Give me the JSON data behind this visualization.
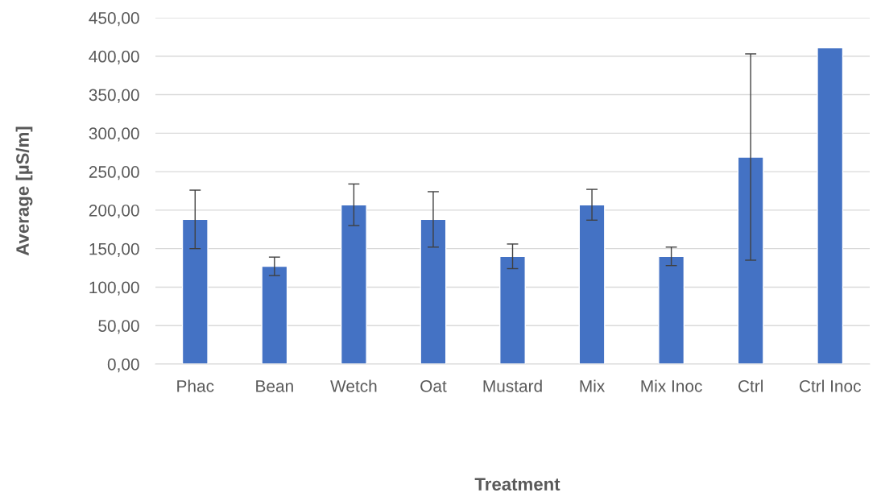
{
  "chart_data": {
    "type": "bar",
    "categories": [
      "Phac",
      "Bean",
      "Wetch",
      "Oat",
      "Mustard",
      "Mix",
      "Mix Inoc",
      "Ctrl",
      "Ctrl Inoc"
    ],
    "values": [
      188,
      127,
      207,
      188,
      140,
      207,
      140,
      269,
      411
    ],
    "errors": [
      38,
      12,
      27,
      36,
      16,
      20,
      12,
      134,
      null
    ],
    "color": "#4472c4",
    "xlabel": "Treatment",
    "ylabel": "Average [µS/m]",
    "ylim": [
      0,
      450
    ],
    "yticks": [
      {
        "value": 0,
        "label": "0,00"
      },
      {
        "value": 50,
        "label": "50,00"
      },
      {
        "value": 100,
        "label": "100,00"
      },
      {
        "value": 150,
        "label": "150,00"
      },
      {
        "value": 200,
        "label": "200,00"
      },
      {
        "value": 250,
        "label": "250,00"
      },
      {
        "value": 300,
        "label": "300,00"
      },
      {
        "value": 350,
        "label": "350,00"
      },
      {
        "value": 400,
        "label": "400,00"
      },
      {
        "value": 450,
        "label": "450,00"
      }
    ],
    "grid": "y"
  }
}
